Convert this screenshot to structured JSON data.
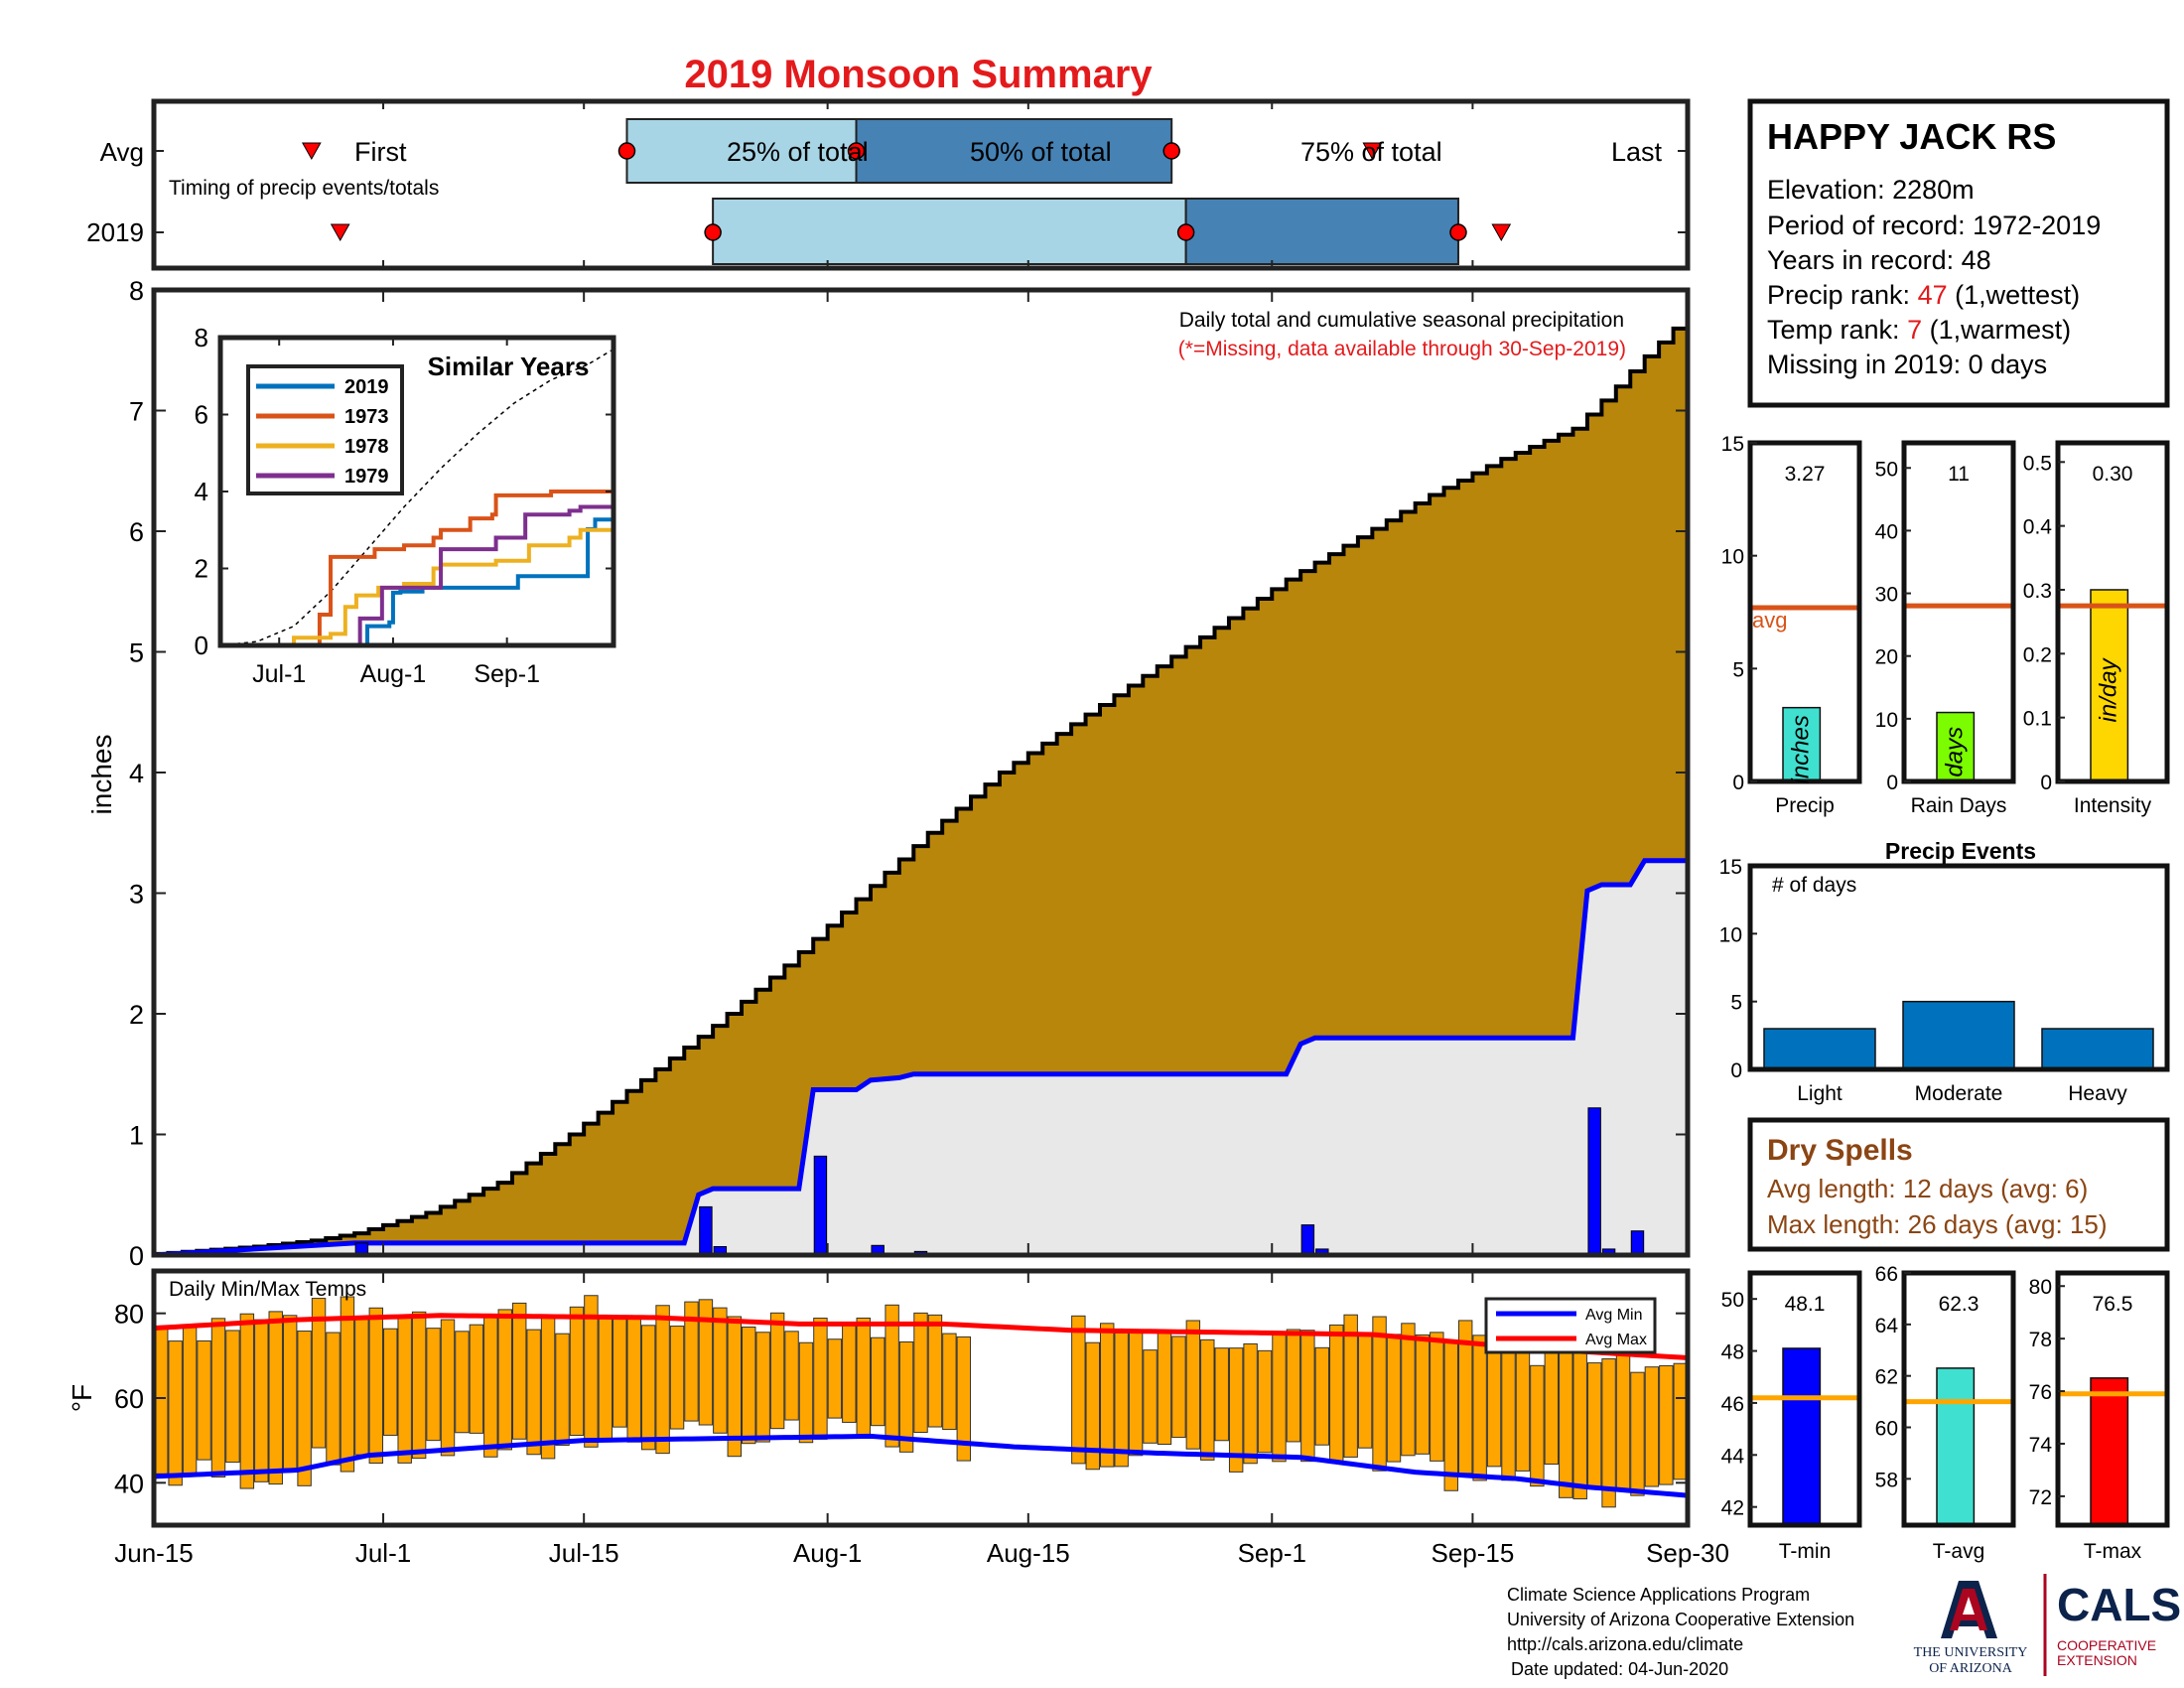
{
  "title": "2019 Monsoon Summary",
  "axis_dates": [
    "Jun-15",
    "Jul-1",
    "Jul-15",
    "Aug-1",
    "Aug-15",
    "Sep-1",
    "Sep-15",
    "Sep-30"
  ],
  "timing": {
    "row_avg": "Avg",
    "row_2019": "2019",
    "caption": "Timing of precip events/totals",
    "first_label": "First",
    "last_label": "Last",
    "p25_label": "25% of total",
    "p50_label": "50% of total",
    "p75_label": "75% of total"
  },
  "station": {
    "name": "HAPPY JACK RS",
    "elevation": "Elevation: 2280m",
    "period": "Period of record: 1972-2019",
    "years": "Years in record: 48",
    "precip_rank_prefix": "Precip rank: ",
    "precip_rank_value": "47",
    "precip_rank_suffix": " (1,wettest)",
    "temp_rank_prefix": "Temp rank: ",
    "temp_rank_value": "7",
    "temp_rank_suffix": " (1,warmest)",
    "missing": "Missing in 2019: 0 days"
  },
  "main_annotation": {
    "line1": "Daily total and cumulative seasonal precipitation",
    "line2": "(*=Missing, data available through 30-Sep-2019)",
    "ylabel": "inches"
  },
  "inset": {
    "title": "Similar Years",
    "legend": [
      "2019",
      "1973",
      "1978",
      "1979"
    ]
  },
  "summary_bars": {
    "avg_label": "avg",
    "labels": [
      "Precip",
      "Rain Days",
      "Intensity"
    ],
    "units": [
      "inches",
      "days",
      "in/day"
    ],
    "values_text": [
      "3.27",
      "11",
      "0.30"
    ]
  },
  "events": {
    "title": "Precip Events",
    "ylabel": "# of days",
    "categories": [
      "Light",
      "Moderate",
      "Heavy"
    ]
  },
  "dry_spells": {
    "title": "Dry Spells",
    "avg": "Avg length: 12 days (avg: 6)",
    "max": "Max length: 26 days (avg: 15)"
  },
  "temps": {
    "caption": "Daily Min/Max Temps",
    "ylabel": "°F",
    "legend_min": "Avg Min",
    "legend_max": "Avg Max",
    "labels": [
      "T-min",
      "T-avg",
      "T-max"
    ],
    "values_text": [
      "48.1",
      "62.3",
      "76.5"
    ]
  },
  "footer": {
    "line1": "Climate Science Applications Program",
    "line2": "University of Arizona Cooperative Extension",
    "line3": "http://cals.arizona.edu/climate",
    "line4": "Date updated: 04-Jun-2020",
    "ua1": "THE UNIVERSITY",
    "ua2": "OF ARIZONA",
    "cals": "CALS",
    "coop1": "COOPERATIVE",
    "coop2": "EXTENSION"
  },
  "colors": {
    "title_red": "#e31a1c",
    "cum_avg_fill": "#b8860b",
    "cum_2019_fill": "#e8e8e8",
    "line_2019": "#0000ff",
    "light_blue": "#a8d5e5",
    "dark_blue": "#4682b4",
    "orange": "#ffa500",
    "avg_line": "#d95319",
    "dry_brown": "#8b4513",
    "ua_blue": "#0c234b",
    "ua_red": "#ab0520"
  },
  "chart_data": [
    {
      "id": "timing",
      "type": "bar",
      "x_units": "day since Jun-15",
      "avg": {
        "first": 11,
        "p25": 33,
        "p50": 49,
        "p75": 71,
        "last": 85
      },
      "y2019": {
        "first": 13,
        "p25": 39,
        "p50": 72,
        "p75": 91,
        "last": 94
      }
    },
    {
      "id": "cumulative_precip",
      "type": "area",
      "x_units": "day since Jun-15",
      "xlim": [
        0,
        107
      ],
      "ylim": [
        0,
        8
      ],
      "avg_cumulative": [
        [
          0,
          0
        ],
        [
          8,
          0.07
        ],
        [
          12,
          0.12
        ],
        [
          15,
          0.18
        ],
        [
          20,
          0.35
        ],
        [
          25,
          0.6
        ],
        [
          30,
          1.0
        ],
        [
          35,
          1.45
        ],
        [
          40,
          1.9
        ],
        [
          45,
          2.4
        ],
        [
          50,
          2.95
        ],
        [
          55,
          3.5
        ],
        [
          60,
          4.0
        ],
        [
          65,
          4.4
        ],
        [
          70,
          4.8
        ],
        [
          75,
          5.2
        ],
        [
          80,
          5.6
        ],
        [
          85,
          5.95
        ],
        [
          90,
          6.3
        ],
        [
          95,
          6.6
        ],
        [
          100,
          6.85
        ],
        [
          103,
          7.2
        ],
        [
          105,
          7.45
        ],
        [
          107,
          7.68
        ]
      ],
      "cum_2019": [
        [
          0,
          0
        ],
        [
          14,
          0.1
        ],
        [
          37,
          0.1
        ],
        [
          38,
          0.5
        ],
        [
          39,
          0.55
        ],
        [
          45,
          0.55
        ],
        [
          46,
          1.37
        ],
        [
          49,
          1.37
        ],
        [
          50,
          1.45
        ],
        [
          52,
          1.47
        ],
        [
          53,
          1.5
        ],
        [
          79,
          1.5
        ],
        [
          80,
          1.75
        ],
        [
          81,
          1.8
        ],
        [
          99,
          1.8
        ],
        [
          100,
          3.02
        ],
        [
          101,
          3.07
        ],
        [
          103,
          3.07
        ],
        [
          104,
          3.27
        ],
        [
          107,
          3.27
        ]
      ],
      "daily_2019": [
        [
          14,
          0.1
        ],
        [
          38,
          0.4
        ],
        [
          39,
          0.07
        ],
        [
          46,
          0.82
        ],
        [
          50,
          0.08
        ],
        [
          53,
          0.03
        ],
        [
          80,
          0.25
        ],
        [
          81,
          0.05
        ],
        [
          100,
          1.22
        ],
        [
          101,
          0.05
        ],
        [
          103,
          0.2
        ]
      ]
    },
    {
      "id": "similar_years",
      "type": "line",
      "xlim": [
        0,
        107
      ],
      "ylim": [
        0,
        8
      ],
      "x_ticks": [
        {
          "x": 16,
          "label": "Jul-1"
        },
        {
          "x": 47,
          "label": "Aug-1"
        },
        {
          "x": 78,
          "label": "Sep-1"
        }
      ],
      "avg_dashed": [
        [
          0,
          0
        ],
        [
          10,
          0.1
        ],
        [
          20,
          0.5
        ],
        [
          30,
          1.4
        ],
        [
          40,
          2.5
        ],
        [
          50,
          3.6
        ],
        [
          60,
          4.6
        ],
        [
          70,
          5.5
        ],
        [
          80,
          6.3
        ],
        [
          90,
          6.9
        ],
        [
          100,
          7.3
        ],
        [
          107,
          7.7
        ]
      ],
      "series": [
        {
          "name": "2019",
          "color": "#0072bd",
          "points": [
            [
              0,
              0
            ],
            [
              39,
              0
            ],
            [
              40,
              0.5
            ],
            [
              46,
              0.6
            ],
            [
              47,
              1.37
            ],
            [
              49,
              1.4
            ],
            [
              55,
              1.5
            ],
            [
              80,
              1.5
            ],
            [
              81,
              1.8
            ],
            [
              99,
              1.8
            ],
            [
              100,
              3.02
            ],
            [
              102,
              3.27
            ],
            [
              107,
              3.27
            ]
          ]
        },
        {
          "name": "1973",
          "color": "#d95319",
          "points": [
            [
              0,
              0
            ],
            [
              25,
              0
            ],
            [
              27,
              0.8
            ],
            [
              30,
              2.3
            ],
            [
              40,
              2.3
            ],
            [
              42,
              2.5
            ],
            [
              50,
              2.6
            ],
            [
              58,
              2.8
            ],
            [
              60,
              3.0
            ],
            [
              68,
              3.3
            ],
            [
              74,
              3.4
            ],
            [
              75,
              3.9
            ],
            [
              90,
              4.0
            ],
            [
              107,
              4.0
            ]
          ]
        },
        {
          "name": "1978",
          "color": "#edb120",
          "points": [
            [
              0,
              0
            ],
            [
              18,
              0
            ],
            [
              20,
              0.2
            ],
            [
              30,
              0.3
            ],
            [
              34,
              1.0
            ],
            [
              37,
              1.3
            ],
            [
              43,
              1.5
            ],
            [
              50,
              1.6
            ],
            [
              58,
              2.0
            ],
            [
              60,
              2.1
            ],
            [
              75,
              2.2
            ],
            [
              84,
              2.6
            ],
            [
              95,
              2.8
            ],
            [
              98,
              3.0
            ],
            [
              107,
              3.0
            ]
          ]
        },
        {
          "name": "1979",
          "color": "#7e2f8e",
          "points": [
            [
              0,
              0
            ],
            [
              36,
              0
            ],
            [
              38,
              0.7
            ],
            [
              44,
              1.5
            ],
            [
              58,
              1.5
            ],
            [
              60,
              2.5
            ],
            [
              72,
              2.5
            ],
            [
              75,
              2.8
            ],
            [
              83,
              3.4
            ],
            [
              95,
              3.5
            ],
            [
              98,
              3.6
            ],
            [
              107,
              3.6
            ]
          ]
        }
      ]
    },
    {
      "id": "seasonal_summary",
      "type": "bar",
      "panels": [
        {
          "name": "Precip",
          "value": 3.27,
          "avg": 7.7,
          "ylim": [
            0,
            15
          ],
          "ticks": [
            0,
            5,
            10,
            15
          ],
          "color": "#40e0d0"
        },
        {
          "name": "Rain Days",
          "value": 11,
          "avg": 28,
          "ylim": [
            0,
            54
          ],
          "ticks": [
            0,
            10,
            20,
            30,
            40,
            50
          ],
          "color": "#7cfc00"
        },
        {
          "name": "Intensity",
          "value": 0.3,
          "avg": 0.275,
          "ylim": [
            0,
            0.53
          ],
          "ticks": [
            0,
            0.1,
            0.2,
            0.3,
            0.4,
            0.5
          ],
          "color": "#ffd700"
        }
      ]
    },
    {
      "id": "precip_events",
      "type": "bar",
      "categories": [
        "Light",
        "Moderate",
        "Heavy"
      ],
      "values": [
        3,
        5,
        3
      ],
      "ylim": [
        0,
        15
      ],
      "ticks": [
        0,
        5,
        10,
        15
      ]
    },
    {
      "id": "daily_temps",
      "type": "bar",
      "xlim": [
        0,
        107
      ],
      "ylim": [
        30,
        90
      ],
      "ticks": [
        40,
        60,
        80
      ],
      "missing_days": [
        [
          57,
          64
        ]
      ],
      "avg_max": [
        [
          0,
          76.5
        ],
        [
          10,
          78.5
        ],
        [
          20,
          79.5
        ],
        [
          35,
          79
        ],
        [
          45,
          77.5
        ],
        [
          55,
          77.5
        ],
        [
          64,
          76
        ],
        [
          75,
          75.5
        ],
        [
          85,
          75
        ],
        [
          90,
          73.5
        ],
        [
          97,
          71.5
        ],
        [
          107,
          69.5
        ]
      ],
      "avg_min": [
        [
          0,
          41.5
        ],
        [
          10,
          43
        ],
        [
          15,
          46.5
        ],
        [
          30,
          50
        ],
        [
          40,
          50.5
        ],
        [
          50,
          51
        ],
        [
          60,
          48.5
        ],
        [
          70,
          47
        ],
        [
          80,
          46
        ],
        [
          88,
          42.5
        ],
        [
          95,
          41
        ],
        [
          100,
          39
        ],
        [
          107,
          37
        ]
      ]
    },
    {
      "id": "temp_summary",
      "type": "bar",
      "panels": [
        {
          "name": "T-min",
          "value": 48.1,
          "avg": 46.2,
          "ylim": [
            41.3,
            51
          ],
          "ticks": [
            42,
            44,
            46,
            48,
            50
          ],
          "color": "#0000ff"
        },
        {
          "name": "T-avg",
          "value": 62.3,
          "avg": 61.0,
          "ylim": [
            56.2,
            66
          ],
          "ticks": [
            58,
            60,
            62,
            64,
            66
          ],
          "color": "#40e0d0"
        },
        {
          "name": "T-max",
          "value": 76.5,
          "avg": 75.9,
          "ylim": [
            70.9,
            80.5
          ],
          "ticks": [
            72,
            74,
            76,
            78,
            80
          ],
          "color": "#ff0000"
        }
      ]
    }
  ]
}
